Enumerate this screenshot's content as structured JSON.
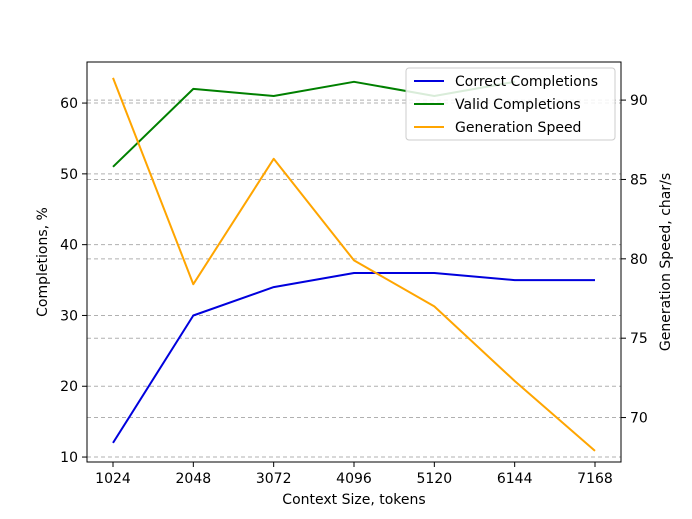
{
  "chart_data": {
    "type": "line",
    "xlabel": "Context Size, tokens",
    "ylabel_left": "Completions, %",
    "ylabel_right": "Generation Speed, char/s",
    "x": [
      1024,
      2048,
      3072,
      4096,
      5120,
      6144,
      7168
    ],
    "x_tick_labels": [
      "1024",
      "2048",
      "3072",
      "4096",
      "5120",
      "6144",
      "7168"
    ],
    "left_axis": {
      "ylim": [
        9.3,
        65.8
      ],
      "ticks": [
        10,
        20,
        30,
        40,
        50,
        60
      ],
      "tick_labels": [
        "10",
        "20",
        "30",
        "40",
        "50",
        "60"
      ]
    },
    "right_axis": {
      "ylim": [
        67.2,
        92.4
      ],
      "ticks": [
        70,
        75,
        80,
        85,
        90
      ],
      "tick_labels": [
        "70",
        "75",
        "80",
        "85",
        "90"
      ]
    },
    "series": [
      {
        "name": "Correct Completions",
        "axis": "left",
        "color": "#0000dd",
        "values": [
          12,
          30,
          34,
          36,
          36,
          35,
          35
        ]
      },
      {
        "name": "Valid Completions",
        "axis": "left",
        "color": "#008000",
        "values": [
          51,
          62,
          61,
          63,
          61,
          63,
          null
        ]
      },
      {
        "name": "Generation Speed",
        "axis": "right",
        "color": "#ffa500",
        "values": [
          91.4,
          78.4,
          86.3,
          79.9,
          77.0,
          72.3,
          67.9
        ]
      }
    ],
    "grid": {
      "style": "dashed",
      "color": "#b0b0b0",
      "axis": "y (both axes)"
    },
    "legend": {
      "placement": "top-right",
      "entries": [
        "Correct Completions",
        "Valid Completions",
        "Generation Speed"
      ]
    }
  }
}
